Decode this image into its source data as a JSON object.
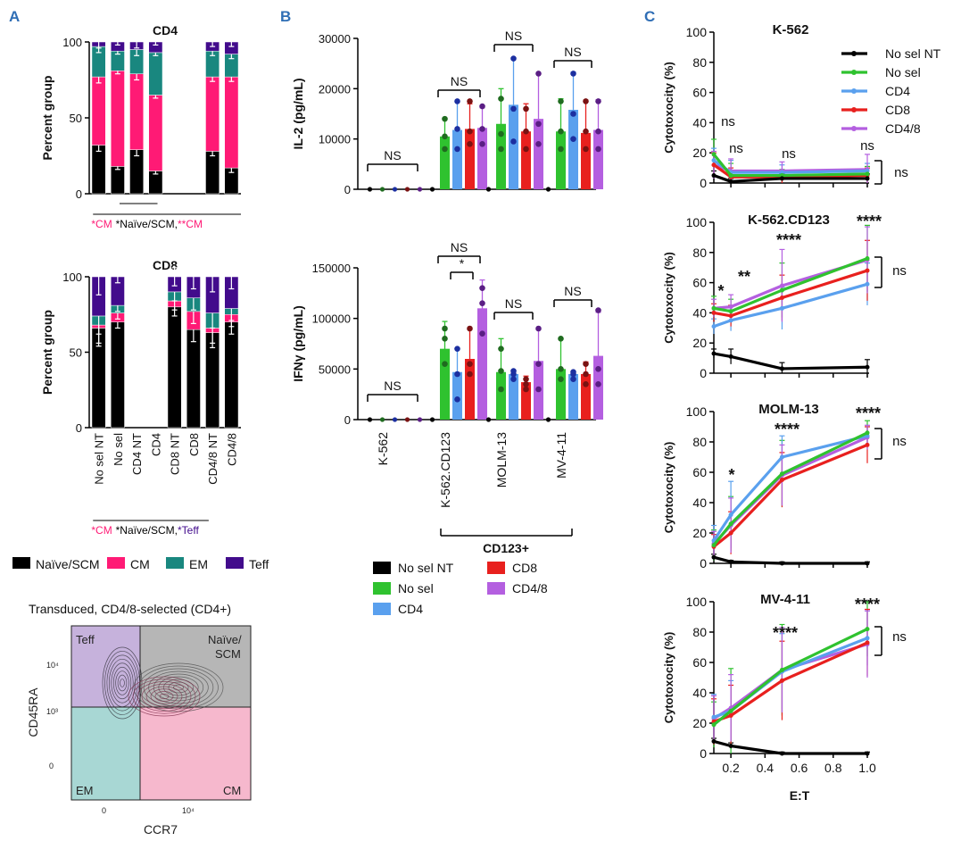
{
  "colors": {
    "naive": "#000000",
    "cm": "#ff1a75",
    "em": "#19877f",
    "teff": "#420b8c",
    "nosel_nt": "#000000",
    "nosel": "#2fc22f",
    "cd4": "#5aa0ee",
    "cd8": "#e8201e",
    "cd48": "#b45fe0",
    "panel_label": "#2f6eb5",
    "flow_teff": "#c6b2dc",
    "flow_naive": "#b6b6b6",
    "flow_em": "#a8d7d4",
    "flow_cm": "#f6b8cd"
  },
  "panel_labels": [
    "A",
    "B",
    "C"
  ],
  "legend_A": [
    {
      "label": "Naïve/SCM",
      "color_key": "naive"
    },
    {
      "label": "CM",
      "color_key": "cm"
    },
    {
      "label": "EM",
      "color_key": "em"
    },
    {
      "label": "Teff",
      "color_key": "teff"
    }
  ],
  "legend_B": [
    {
      "label": "No sel NT",
      "color_key": "nosel_nt"
    },
    {
      "label": "CD8",
      "color_key": "cd8"
    },
    {
      "label": "No sel",
      "color_key": "nosel"
    },
    {
      "label": "CD4/8",
      "color_key": "cd48"
    },
    {
      "label": "CD4",
      "color_key": "cd4"
    }
  ],
  "legend_C": [
    {
      "label": "No sel NT",
      "color_key": "nosel_nt"
    },
    {
      "label": "No sel",
      "color_key": "nosel"
    },
    {
      "label": "CD4",
      "color_key": "cd4"
    },
    {
      "label": "CD8",
      "color_key": "cd8"
    },
    {
      "label": "CD4/8",
      "color_key": "cd48"
    }
  ],
  "flow": {
    "title": "Transduced, CD4/8-selected (CD4+)",
    "quadrants": {
      "teff": "Teff",
      "naive_a": "Naïve/",
      "naive_b": "SCM",
      "em": "EM",
      "cm": "CM"
    },
    "xlabel": "CCR7",
    "ylabel": "CD45RA",
    "xticks": [
      "0",
      "10⁴"
    ],
    "yticks": [
      "10⁴",
      "10³",
      "0"
    ]
  },
  "chart_data": [
    {
      "id": "A-CD4",
      "type": "bar",
      "stacked": true,
      "title": "CD4",
      "ylabel": "Percent group",
      "ylim": [
        0,
        100
      ],
      "yticks": [
        0,
        50,
        100
      ],
      "categories": [
        "No sel NT",
        "No sel",
        "CD4 NT",
        "CD4",
        "CD8 NT",
        "CD8",
        "CD4/8 NT",
        "CD4/8"
      ],
      "series": [
        {
          "name": "Naïve/SCM",
          "color_key": "naive",
          "values": [
            32,
            18,
            29,
            15,
            null,
            null,
            28,
            17
          ]
        },
        {
          "name": "CM",
          "color_key": "cm",
          "values": [
            45,
            63,
            50,
            50,
            null,
            null,
            49,
            60
          ]
        },
        {
          "name": "EM",
          "color_key": "em",
          "values": [
            20,
            13,
            16,
            28,
            null,
            null,
            17,
            15
          ]
        },
        {
          "name": "Teff",
          "color_key": "teff",
          "values": [
            3,
            6,
            5,
            7,
            null,
            null,
            6,
            8
          ]
        }
      ],
      "error_bars": [
        4,
        2,
        4,
        2,
        null,
        null,
        3,
        3
      ],
      "significance": [
        {
          "text": "*CM",
          "color_key": "cm"
        },
        {
          "text": "*Naïve/SCM, ",
          "color_key": "naive"
        },
        {
          "text": "**CM",
          "color_key": "cm"
        }
      ]
    },
    {
      "id": "A-CD8",
      "type": "bar",
      "stacked": true,
      "title": "CD8",
      "ylabel": "Percent  group",
      "ylim": [
        0,
        100
      ],
      "yticks": [
        0,
        50,
        100
      ],
      "categories": [
        "No sel NT",
        "No sel",
        "CD4 NT",
        "CD4",
        "CD8 NT",
        "CD8",
        "CD4/8 NT",
        "CD4/8"
      ],
      "series": [
        {
          "name": "Naïve/SCM",
          "color_key": "naive",
          "values": [
            66,
            70,
            null,
            null,
            80,
            65,
            63,
            70
          ]
        },
        {
          "name": "CM",
          "color_key": "cm",
          "values": [
            2,
            6,
            null,
            null,
            4,
            12,
            3,
            5
          ]
        },
        {
          "name": "EM",
          "color_key": "em",
          "values": [
            6,
            5,
            null,
            null,
            6,
            9,
            10,
            4
          ]
        },
        {
          "name": "Teff",
          "color_key": "teff",
          "values": [
            26,
            19,
            null,
            null,
            10,
            14,
            24,
            21
          ]
        }
      ],
      "error_bars": [
        12,
        4,
        null,
        null,
        6,
        8,
        10,
        8
      ],
      "significance": [
        {
          "text": "*CM",
          "color_key": "cm"
        },
        {
          "text": "*Naïve/SCM, ",
          "color_key": "naive"
        },
        {
          "text": "*Teff",
          "color_key": "teff"
        }
      ]
    },
    {
      "id": "B-IL2",
      "type": "bar",
      "grouped": true,
      "ylabel": "IL-2 (pg/mL)",
      "ylim": [
        0,
        30000
      ],
      "yticks": [
        0,
        10000,
        20000,
        30000
      ],
      "ytick_labels": [
        "0",
        "10000",
        "20000",
        "30000"
      ],
      "groups": [
        "K-562",
        "K-562.CD123",
        "MOLM-13",
        "MV-4-11"
      ],
      "series_keys": [
        "nosel_nt",
        "nosel",
        "cd4",
        "cd8",
        "cd48"
      ],
      "means": [
        [
          0,
          0,
          0,
          0,
          0
        ],
        [
          0,
          10500,
          11800,
          12000,
          12200
        ],
        [
          0,
          13000,
          16800,
          11500,
          14000
        ],
        [
          0,
          11500,
          15800,
          11200,
          11800
        ]
      ],
      "errors": [
        [
          0,
          0,
          0,
          0,
          0
        ],
        [
          0,
          3500,
          5500,
          5000,
          4000
        ],
        [
          0,
          7000,
          9000,
          5500,
          9000
        ],
        [
          0,
          6500,
          7500,
          6500,
          6000
        ]
      ],
      "points": [
        [
          [
            0
          ],
          [
            0
          ],
          [
            0
          ],
          [
            0
          ],
          [
            0
          ]
        ],
        [
          [
            0
          ],
          [
            8000,
            10500,
            14000
          ],
          [
            8000,
            12000,
            17500
          ],
          [
            9000,
            11500,
            17500
          ],
          [
            9000,
            12000,
            16500
          ]
        ],
        [
          [
            0
          ],
          [
            8000,
            11000,
            18000
          ],
          [
            9500,
            16000,
            26000
          ],
          [
            8000,
            11500,
            16000
          ],
          [
            9000,
            13000,
            23000
          ]
        ],
        [
          [
            0
          ],
          [
            8000,
            11500,
            17500
          ],
          [
            10000,
            15000,
            23000
          ],
          [
            8000,
            11500,
            17500
          ],
          [
            8000,
            11500,
            17500
          ]
        ]
      ],
      "significance": [
        "NS",
        "NS",
        "NS",
        "NS"
      ]
    },
    {
      "id": "B-IFNg",
      "type": "bar",
      "grouped": true,
      "ylabel": "IFNγ (pg/mL)",
      "ylim": [
        0,
        150000
      ],
      "yticks": [
        0,
        50000,
        100000,
        150000
      ],
      "ytick_labels": [
        "0",
        "50000",
        "100000",
        "150000"
      ],
      "groups": [
        "K-562",
        "K-562.CD123",
        "MOLM-13",
        "MV-4-11"
      ],
      "series_keys": [
        "nosel_nt",
        "nosel",
        "cd4",
        "cd8",
        "cd48"
      ],
      "means": [
        [
          0,
          0,
          0,
          0,
          0
        ],
        [
          0,
          70000,
          47000,
          60000,
          110000
        ],
        [
          0,
          47000,
          45000,
          37000,
          58000
        ],
        [
          0,
          50000,
          45000,
          45000,
          63000
        ]
      ],
      "errors": [
        [
          0,
          0,
          0,
          0,
          0
        ],
        [
          0,
          27000,
          23000,
          30000,
          28000
        ],
        [
          0,
          33000,
          3000,
          6000,
          32000
        ],
        [
          0,
          30000,
          3000,
          12000,
          43000
        ]
      ],
      "points": [
        [
          [
            0
          ],
          [
            0
          ],
          [
            0
          ],
          [
            0
          ],
          [
            0
          ]
        ],
        [
          [
            0
          ],
          [
            55000,
            80000,
            90000
          ],
          [
            20000,
            45000,
            70000
          ],
          [
            45000,
            55000,
            90000
          ],
          [
            85000,
            115000,
            130000
          ]
        ],
        [
          [
            0
          ],
          [
            30000,
            48000,
            70000
          ],
          [
            40000,
            45000,
            48000
          ],
          [
            30000,
            35000,
            40000
          ],
          [
            30000,
            55000,
            90000
          ]
        ],
        [
          [
            0
          ],
          [
            40000,
            50000,
            80000
          ],
          [
            40000,
            45000,
            47000
          ],
          [
            35000,
            45000,
            55000
          ],
          [
            35000,
            50000,
            108000
          ]
        ]
      ],
      "significance": [
        "NS",
        "NS",
        "NS",
        "NS",
        "*"
      ],
      "xtick_labels": [
        "K-562",
        "K-562.CD123",
        "MOLM-13",
        "MV-4-11"
      ],
      "bracket_label": "CD123+"
    },
    {
      "id": "C-K562",
      "type": "line",
      "title": "K-562",
      "xlabel": "",
      "ylabel": "Cytotoxocity (%)",
      "xlim": [
        0.1,
        1.0
      ],
      "ylim": [
        0,
        100
      ],
      "yticks": [
        0,
        20,
        40,
        60,
        80,
        100
      ],
      "x": [
        0.1,
        0.2,
        0.5,
        1.0
      ],
      "series": [
        {
          "name": "No sel NT",
          "color_key": "nosel_nt",
          "values": [
            5,
            1,
            3,
            3
          ],
          "err": [
            3,
            2,
            3,
            3
          ]
        },
        {
          "name": "No sel",
          "color_key": "nosel",
          "values": [
            19,
            5,
            5,
            6
          ],
          "err": [
            10,
            8,
            4,
            5
          ]
        },
        {
          "name": "CD4",
          "color_key": "cd4",
          "values": [
            15,
            7,
            7,
            8
          ],
          "err": [
            8,
            8,
            5,
            5
          ]
        },
        {
          "name": "CD8",
          "color_key": "cd8",
          "values": [
            12,
            4,
            4,
            5
          ],
          "err": [
            8,
            6,
            4,
            5
          ]
        },
        {
          "name": "CD4/8",
          "color_key": "cd48",
          "values": [
            12,
            8,
            8,
            9
          ],
          "err": [
            9,
            8,
            6,
            10
          ]
        }
      ],
      "annotations": [
        "ns",
        "ns",
        "ns",
        "ns",
        "ns"
      ]
    },
    {
      "id": "C-K562CD123",
      "type": "line",
      "title": "K-562.CD123",
      "xlabel": "",
      "ylabel": "Cytotoxocity (%)",
      "xlim": [
        0.1,
        1.0
      ],
      "ylim": [
        0,
        100
      ],
      "yticks": [
        0,
        20,
        40,
        60,
        80,
        100
      ],
      "x": [
        0.1,
        0.2,
        0.5,
        1.0
      ],
      "series": [
        {
          "name": "No sel NT",
          "color_key": "nosel_nt",
          "values": [
            13,
            11,
            3,
            4
          ],
          "err": [
            3,
            5,
            4,
            5
          ]
        },
        {
          "name": "No sel",
          "color_key": "nosel",
          "values": [
            43,
            41,
            55,
            76
          ],
          "err": [
            8,
            8,
            18,
            22
          ]
        },
        {
          "name": "CD4",
          "color_key": "cd4",
          "values": [
            31,
            35,
            43,
            59
          ],
          "err": [
            5,
            7,
            14,
            14
          ]
        },
        {
          "name": "CD8",
          "color_key": "cd8",
          "values": [
            40,
            38,
            50,
            68
          ],
          "err": [
            6,
            7,
            15,
            20
          ]
        },
        {
          "name": "CD4/8",
          "color_key": "cd48",
          "values": [
            43,
            44,
            58,
            75
          ],
          "err": [
            6,
            8,
            24,
            22
          ]
        }
      ],
      "annotations": [
        "*",
        "**",
        "****",
        "****",
        "ns"
      ]
    },
    {
      "id": "C-MOLM13",
      "type": "line",
      "title": "MOLM-13",
      "xlabel": "",
      "ylabel": "Cytotoxocity (%)",
      "xlim": [
        0.1,
        1.0
      ],
      "ylim": [
        0,
        100
      ],
      "yticks": [
        0,
        20,
        40,
        60,
        80,
        100
      ],
      "x": [
        0.1,
        0.2,
        0.5,
        1.0
      ],
      "series": [
        {
          "name": "No sel NT",
          "color_key": "nosel_nt",
          "values": [
            4,
            1,
            0,
            0
          ],
          "err": [
            2,
            1,
            1,
            1
          ]
        },
        {
          "name": "No sel",
          "color_key": "nosel",
          "values": [
            12,
            26,
            59,
            86
          ],
          "err": [
            10,
            18,
            22,
            8
          ]
        },
        {
          "name": "CD4",
          "color_key": "cd4",
          "values": [
            15,
            32,
            70,
            84
          ],
          "err": [
            10,
            22,
            14,
            6
          ]
        },
        {
          "name": "CD8",
          "color_key": "cd8",
          "values": [
            11,
            20,
            55,
            78
          ],
          "err": [
            8,
            14,
            18,
            12
          ]
        },
        {
          "name": "CD4/8",
          "color_key": "cd48",
          "values": [
            13,
            25,
            58,
            83
          ],
          "err": [
            8,
            18,
            20,
            8
          ]
        }
      ],
      "annotations": [
        "*",
        "****",
        "****",
        "ns"
      ]
    },
    {
      "id": "C-MV411",
      "type": "line",
      "title": "MV-4-11",
      "xlabel": "E:T",
      "ylabel": "Cytotoxocity (%)",
      "xlim": [
        0.1,
        1.0
      ],
      "ylim": [
        0,
        100
      ],
      "yticks": [
        0,
        20,
        40,
        60,
        80,
        100
      ],
      "xticks": [
        0.2,
        0.4,
        0.6,
        0.8,
        1.0
      ],
      "xtick_labels": [
        "0.2",
        "0.4",
        "0.6",
        "0.8",
        "1.0"
      ],
      "x": [
        0.1,
        0.2,
        0.5,
        1.0
      ],
      "series": [
        {
          "name": "No sel NT",
          "color_key": "nosel_nt",
          "values": [
            8,
            5,
            0,
            0
          ],
          "err": [
            2,
            2,
            1,
            1
          ]
        },
        {
          "name": "No sel",
          "color_key": "nosel",
          "values": [
            19,
            28,
            55,
            82
          ],
          "err": [
            15,
            28,
            30,
            18
          ]
        },
        {
          "name": "CD4",
          "color_key": "cd4",
          "values": [
            24,
            28,
            54,
            76
          ],
          "err": [
            15,
            20,
            25,
            18
          ]
        },
        {
          "name": "CD8",
          "color_key": "cd8",
          "values": [
            21,
            25,
            48,
            73
          ],
          "err": [
            15,
            20,
            26,
            22
          ]
        },
        {
          "name": "CD4/8",
          "color_key": "cd48",
          "values": [
            23,
            30,
            55,
            72
          ],
          "err": [
            15,
            22,
            28,
            22
          ]
        }
      ],
      "annotations": [
        "****",
        "****",
        "ns"
      ]
    }
  ]
}
